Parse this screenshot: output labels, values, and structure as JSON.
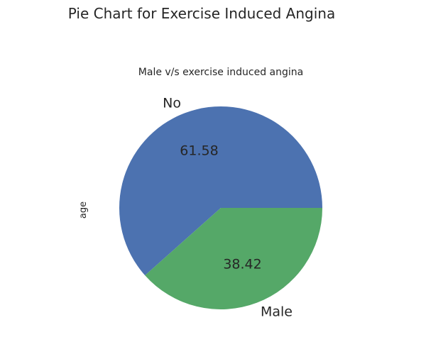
{
  "chart_data": {
    "type": "pie",
    "suptitle": "Pie Chart for Exercise Induced Angina",
    "title": "Male v/s exercise induced angina",
    "ylabel": "age",
    "labels": [
      "No",
      "Male"
    ],
    "values": [
      61.58,
      38.42
    ],
    "value_labels": [
      "61.58",
      "38.42"
    ],
    "colors": [
      "#4C72B0",
      "#55A868"
    ],
    "legend": "none"
  }
}
